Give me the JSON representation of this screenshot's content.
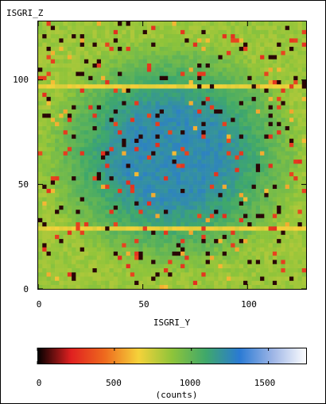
{
  "chart_data": [
    {
      "type": "heatmap",
      "title": "",
      "xlabel": "ISGRI_Y",
      "ylabel": "ISGRI_Z",
      "xlim": [
        0,
        128
      ],
      "ylim": [
        0,
        128
      ],
      "x_ticks": [
        0,
        50,
        100
      ],
      "y_ticks": [
        0,
        50,
        100
      ],
      "horizontal_bands": [
        {
          "z": 29,
          "level": "yellow"
        },
        {
          "z": 97,
          "level": "yellow"
        }
      ],
      "pattern": "green (~900 counts) near edges, blue (~1200 counts) in the central region, with scattered black, red and yellow pixels"
    },
    {
      "type": "colorbar",
      "label": "(counts)",
      "range": [
        0,
        1750
      ],
      "ticks": [
        0,
        500,
        1000,
        1500
      ],
      "colormap": [
        "#000000",
        "#e02020",
        "#ee6a1e",
        "#f5d23a",
        "#8ec43a",
        "#3fa86b",
        "#2a7ad4",
        "#9fb6e6",
        "#ffffff"
      ]
    }
  ],
  "axes": {
    "x_label": "ISGRI_Y",
    "y_label": "ISGRI_Z",
    "x_tick_labels": [
      "0",
      "50",
      "100"
    ],
    "y_tick_labels": [
      "0",
      "50",
      "100"
    ]
  },
  "colorbar": {
    "label": "(counts)",
    "tick_labels": [
      "0",
      "500",
      "1000",
      "1500"
    ]
  }
}
